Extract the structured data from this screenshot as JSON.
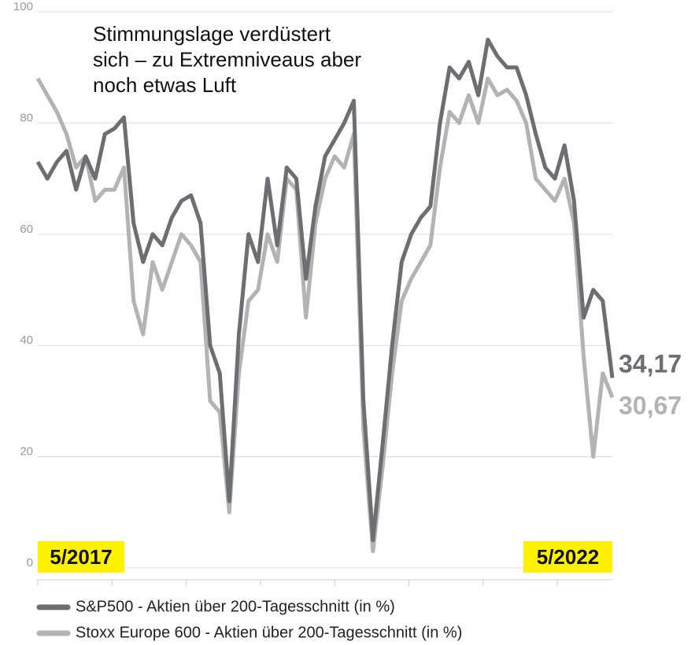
{
  "chart_data": {
    "type": "line",
    "title": [
      "Stimmungslage verdüstert",
      "sich – zu Extremniveaus aber",
      "noch etwas Luft"
    ],
    "categories": [
      "5/2017",
      null,
      null,
      null,
      null,
      null,
      null,
      null,
      null,
      null,
      null,
      null,
      null,
      null,
      null,
      null,
      null,
      null,
      null,
      null,
      null,
      null,
      null,
      null,
      null,
      null,
      null,
      null,
      null,
      null,
      null,
      null,
      null,
      null,
      null,
      null,
      null,
      null,
      null,
      null,
      null,
      null,
      null,
      null,
      null,
      null,
      null,
      null,
      null,
      null,
      null,
      null,
      null,
      null,
      null,
      null,
      null,
      null,
      null,
      null,
      "5/2022"
    ],
    "series": [
      {
        "name": "S&P500 - Aktien über 200-Tagesschnitt (in %)",
        "color": "#6d6e71",
        "values": [
          73,
          70,
          73,
          75,
          68,
          74,
          70,
          78,
          79,
          81,
          62,
          55,
          60,
          58,
          63,
          66,
          67,
          62,
          40,
          35,
          12,
          42,
          60,
          55,
          70,
          58,
          72,
          70,
          52,
          65,
          74,
          77,
          80,
          84,
          30,
          5,
          22,
          40,
          55,
          60,
          63,
          65,
          80,
          90,
          88,
          91,
          85,
          95,
          92,
          90,
          90,
          85,
          78,
          72,
          70,
          76,
          66,
          45,
          50,
          48,
          34.17
        ],
        "value_labels": [
          null,
          null,
          null,
          null,
          null,
          null,
          null,
          null,
          null,
          null,
          null,
          null,
          null,
          null,
          null,
          null,
          null,
          null,
          null,
          null,
          null,
          null,
          null,
          null,
          null,
          null,
          null,
          null,
          null,
          null,
          null,
          null,
          null,
          null,
          null,
          null,
          null,
          null,
          null,
          null,
          null,
          null,
          null,
          null,
          null,
          null,
          null,
          null,
          null,
          null,
          null,
          null,
          null,
          null,
          null,
          null,
          null,
          null,
          null,
          null,
          "34,17"
        ]
      },
      {
        "name": "Stoxx Europe 600 - Aktien über 200-Tagesschnitt (in %)",
        "color": "#b3b3b3",
        "values": [
          88,
          85,
          82,
          78,
          72,
          74,
          66,
          68,
          68,
          72,
          48,
          42,
          55,
          50,
          55,
          60,
          58,
          55,
          30,
          28,
          10,
          35,
          48,
          50,
          60,
          55,
          70,
          68,
          45,
          62,
          70,
          74,
          72,
          78,
          25,
          3,
          18,
          35,
          48,
          52,
          55,
          58,
          72,
          82,
          80,
          85,
          80,
          88,
          85,
          86,
          84,
          80,
          70,
          68,
          66,
          70,
          62,
          38,
          20,
          35,
          30.67
        ],
        "value_labels": [
          null,
          null,
          null,
          null,
          null,
          null,
          null,
          null,
          null,
          null,
          null,
          null,
          null,
          null,
          null,
          null,
          null,
          null,
          null,
          null,
          null,
          null,
          null,
          null,
          null,
          null,
          null,
          null,
          null,
          null,
          null,
          null,
          null,
          null,
          null,
          null,
          null,
          null,
          null,
          null,
          null,
          null,
          null,
          null,
          null,
          null,
          null,
          null,
          null,
          null,
          null,
          null,
          null,
          null,
          null,
          null,
          null,
          null,
          null,
          null,
          "30,67"
        ]
      }
    ],
    "ylim": [
      0,
      100
    ],
    "yticks": [
      0,
      20,
      40,
      60,
      80,
      100
    ],
    "grid": true
  }
}
